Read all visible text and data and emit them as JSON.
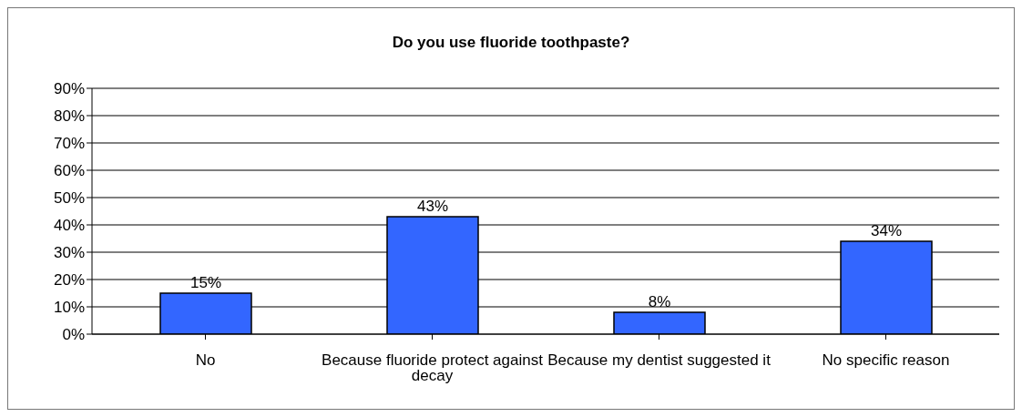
{
  "chart_data": {
    "type": "bar",
    "title": "Do you use fluoride toothpaste?",
    "categories": [
      "No",
      "Because fluoride protect against decay",
      "Because my dentist suggested it",
      "No specific reason"
    ],
    "values": [
      15,
      43,
      8,
      34
    ],
    "color": "#3366ff",
    "value_labels": [
      "15%",
      "43%",
      "8%",
      "34%"
    ],
    "ylim": [
      0,
      90
    ],
    "yticks": [
      {
        "value": 0,
        "label": "0%"
      },
      {
        "value": 10,
        "label": "10%"
      },
      {
        "value": 20,
        "label": "20%"
      },
      {
        "value": 30,
        "label": "30%"
      },
      {
        "value": 40,
        "label": "40%"
      },
      {
        "value": 50,
        "label": "50%"
      },
      {
        "value": 60,
        "label": "60%"
      },
      {
        "value": 70,
        "label": "70%"
      },
      {
        "value": 80,
        "label": "80%"
      },
      {
        "value": 90,
        "label": "90%"
      }
    ],
    "grid": "y",
    "legend": false
  }
}
